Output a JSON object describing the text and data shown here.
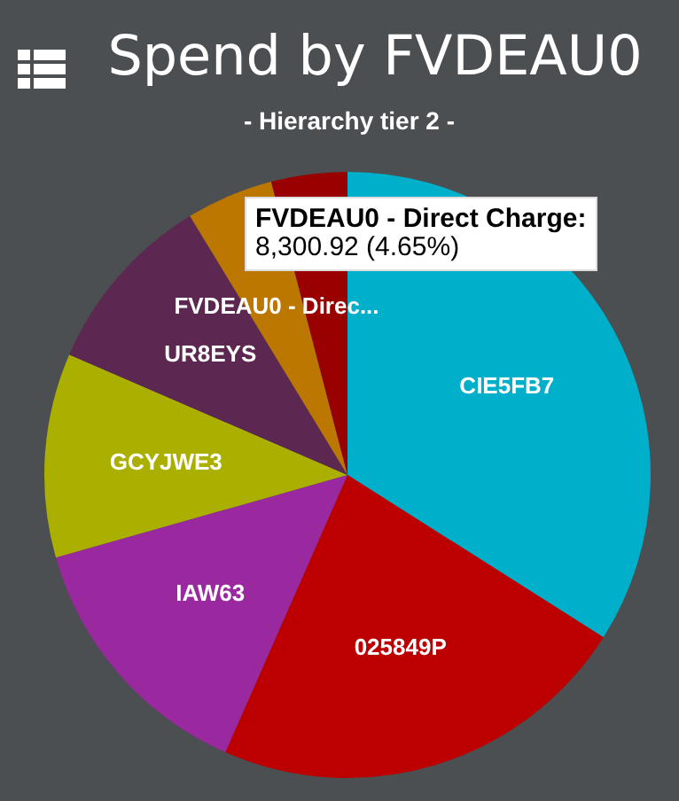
{
  "chart_data": {
    "type": "pie",
    "title": "Spend by FVDEAU0",
    "subtitle": "- Hierarchy tier 2 -",
    "categories": [
      "CIE5FB7",
      "025849P",
      "IAW63",
      "GCYJWE3",
      "UR8EYS",
      "FVDEAU0 - Direc...",
      null
    ],
    "values": [
      34.0,
      22.6,
      14.0,
      10.9,
      9.8,
      4.65,
      4.05
    ],
    "colors": [
      "#00afca",
      "#bc0000",
      "#9a289e",
      "#abb000",
      "#5c2750",
      "#bb7700",
      "#990000"
    ],
    "annotations": [
      "FVDEAU0 - Direct Charge:",
      "8,300.92 (4.65%)"
    ],
    "data_labels": false,
    "legend": false
  }
}
